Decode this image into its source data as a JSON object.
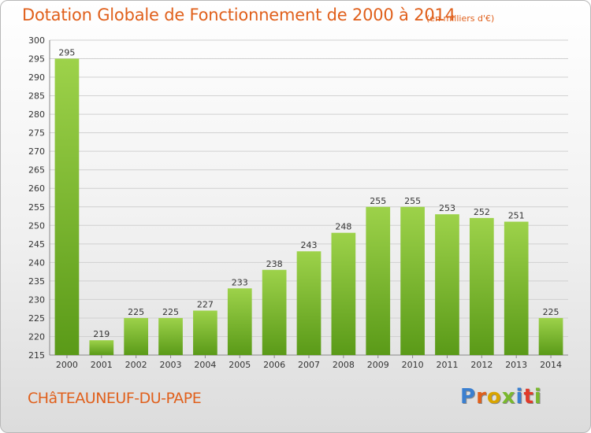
{
  "header": {
    "title": "Dotation Globale de Fonctionnement de 2000 à 2014",
    "unit_note": "(en milliers d'€)"
  },
  "footer": {
    "town": "CHâTEAUNEUF-DU-PAPE",
    "logo_text": "Proxiti",
    "logo_colors": [
      "#3a7fd0",
      "#e0601c",
      "#d9a400",
      "#7ab82e",
      "#3a7fd0",
      "#e03a2a",
      "#7ab82e"
    ]
  },
  "colors": {
    "bar_light": "#9dd24a",
    "bar_dark": "#5a9a18",
    "accent": "#e0601c",
    "grid": "#d0d0d0"
  },
  "chart_data": {
    "type": "bar",
    "title": "Dotation Globale de Fonctionnement de 2000 à 2014",
    "xlabel": "",
    "ylabel": "",
    "ylim": [
      215,
      300
    ],
    "y_tick_step": 5,
    "grid": true,
    "categories": [
      "2000",
      "2001",
      "2002",
      "2003",
      "2004",
      "2005",
      "2006",
      "2007",
      "2008",
      "2009",
      "2010",
      "2011",
      "2012",
      "2013",
      "2014"
    ],
    "values": [
      295,
      219,
      225,
      225,
      227,
      233,
      238,
      243,
      248,
      255,
      255,
      253,
      252,
      251,
      225
    ]
  }
}
